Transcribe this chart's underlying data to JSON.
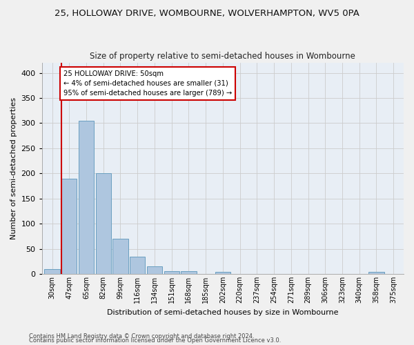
{
  "title": "25, HOLLOWAY DRIVE, WOMBOURNE, WOLVERHAMPTON, WV5 0PA",
  "subtitle": "Size of property relative to semi-detached houses in Wombourne",
  "xlabel": "Distribution of semi-detached houses by size in Wombourne",
  "ylabel": "Number of semi-detached properties",
  "categories": [
    "30sqm",
    "47sqm",
    "65sqm",
    "82sqm",
    "99sqm",
    "116sqm",
    "134sqm",
    "151sqm",
    "168sqm",
    "185sqm",
    "202sqm",
    "220sqm",
    "237sqm",
    "254sqm",
    "271sqm",
    "289sqm",
    "306sqm",
    "323sqm",
    "340sqm",
    "358sqm",
    "375sqm"
  ],
  "values": [
    9,
    190,
    305,
    200,
    70,
    35,
    15,
    5,
    5,
    0,
    4,
    0,
    0,
    0,
    0,
    0,
    0,
    0,
    0,
    4,
    0
  ],
  "bar_color": "#aec6df",
  "bar_edge_color": "#6a9fc0",
  "vline_x_idx": 1,
  "vline_color": "#cc0000",
  "annotation_line1": "25 HOLLOWAY DRIVE: 50sqm",
  "annotation_line2": "← 4% of semi-detached houses are smaller (31)",
  "annotation_line3": "95% of semi-detached houses are larger (789) →",
  "annotation_box_color": "#ffffff",
  "annotation_box_edge": "#cc0000",
  "ylim": [
    0,
    420
  ],
  "yticks": [
    0,
    50,
    100,
    150,
    200,
    250,
    300,
    350,
    400
  ],
  "grid_color": "#cccccc",
  "background_color": "#e8eef5",
  "fig_background": "#f0f0f0",
  "footnote1": "Contains HM Land Registry data © Crown copyright and database right 2024.",
  "footnote2": "Contains public sector information licensed under the Open Government Licence v3.0."
}
